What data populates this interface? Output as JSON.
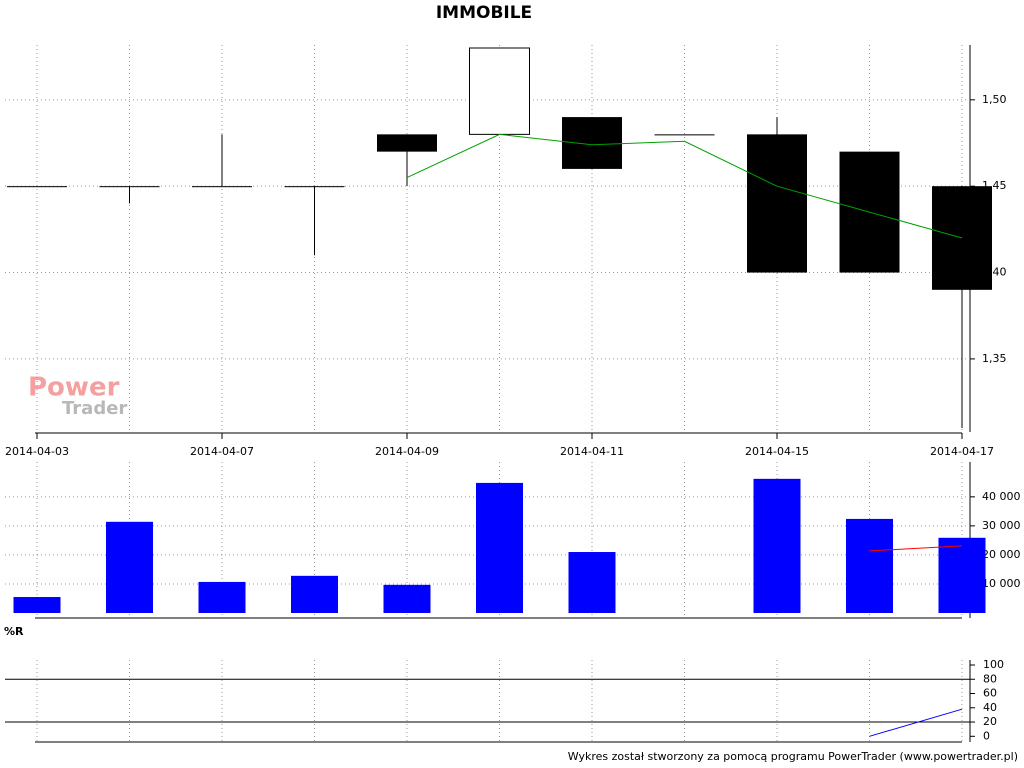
{
  "chart_data": [
    {
      "type": "candlestick",
      "title": "IMMOBILE",
      "categories": [
        "2014-04-03",
        null,
        "2014-04-07",
        null,
        "2014-04-09",
        null,
        "2014-04-11",
        null,
        "2014-04-15",
        null,
        "2014-04-17"
      ],
      "open": [
        1.45,
        1.45,
        1.45,
        1.45,
        1.48,
        1.48,
        1.49,
        1.48,
        1.48,
        1.47,
        1.45
      ],
      "high": [
        1.45,
        1.45,
        1.48,
        1.45,
        1.48,
        1.53,
        1.49,
        1.48,
        1.49,
        1.47,
        1.45
      ],
      "low": [
        1.45,
        1.44,
        1.45,
        1.41,
        1.45,
        1.48,
        1.46,
        1.48,
        1.4,
        1.4,
        1.31
      ],
      "close": [
        1.45,
        1.45,
        1.45,
        1.45,
        1.47,
        1.53,
        1.46,
        1.48,
        1.4,
        1.4,
        1.39
      ],
      "overlays": [
        {
          "color": "#00a000",
          "values": [
            null,
            null,
            null,
            null,
            1.455,
            1.48,
            1.474,
            1.476,
            1.45,
            1.435,
            1.42
          ]
        }
      ],
      "ylim": [
        1.31,
        1.53
      ],
      "yticks": [
        {
          "value": 1.35,
          "label": "1,35"
        },
        {
          "value": 1.4,
          "label": "1,40"
        },
        {
          "value": 1.45,
          "label": "1,45"
        },
        {
          "value": 1.5,
          "label": "1,50"
        }
      ],
      "grid": true
    },
    {
      "type": "bar",
      "color": "#0000ff",
      "values": [
        5500,
        31400,
        10700,
        12800,
        9700,
        44800,
        21000,
        0,
        46200,
        32400,
        25900
      ],
      "overlays": [
        {
          "color": "#ff0000",
          "values": [
            null,
            null,
            null,
            null,
            null,
            null,
            null,
            null,
            null,
            21400,
            23100
          ]
        }
      ],
      "ylim": [
        0,
        52000
      ],
      "yticks": [
        {
          "value": 10000,
          "label": "10 000"
        },
        {
          "value": 20000,
          "label": "20 000"
        },
        {
          "value": 30000,
          "label": "30 000"
        },
        {
          "value": 40000,
          "label": "40 000"
        }
      ],
      "grid": true
    },
    {
      "type": "line",
      "title": "%R",
      "color": "#0000ff",
      "values": [
        null,
        null,
        null,
        null,
        null,
        null,
        null,
        null,
        null,
        0,
        38
      ],
      "reference_lines": [
        80,
        20
      ],
      "ylim": [
        -8,
        107
      ],
      "yticks": [
        0,
        20,
        40,
        60,
        80,
        100
      ],
      "grid": true
    }
  ],
  "watermark": [
    "Power",
    "Trader"
  ],
  "footer": "Wykres został stworzony za pomocą programu PowerTrader (www.powertrader.pl)"
}
